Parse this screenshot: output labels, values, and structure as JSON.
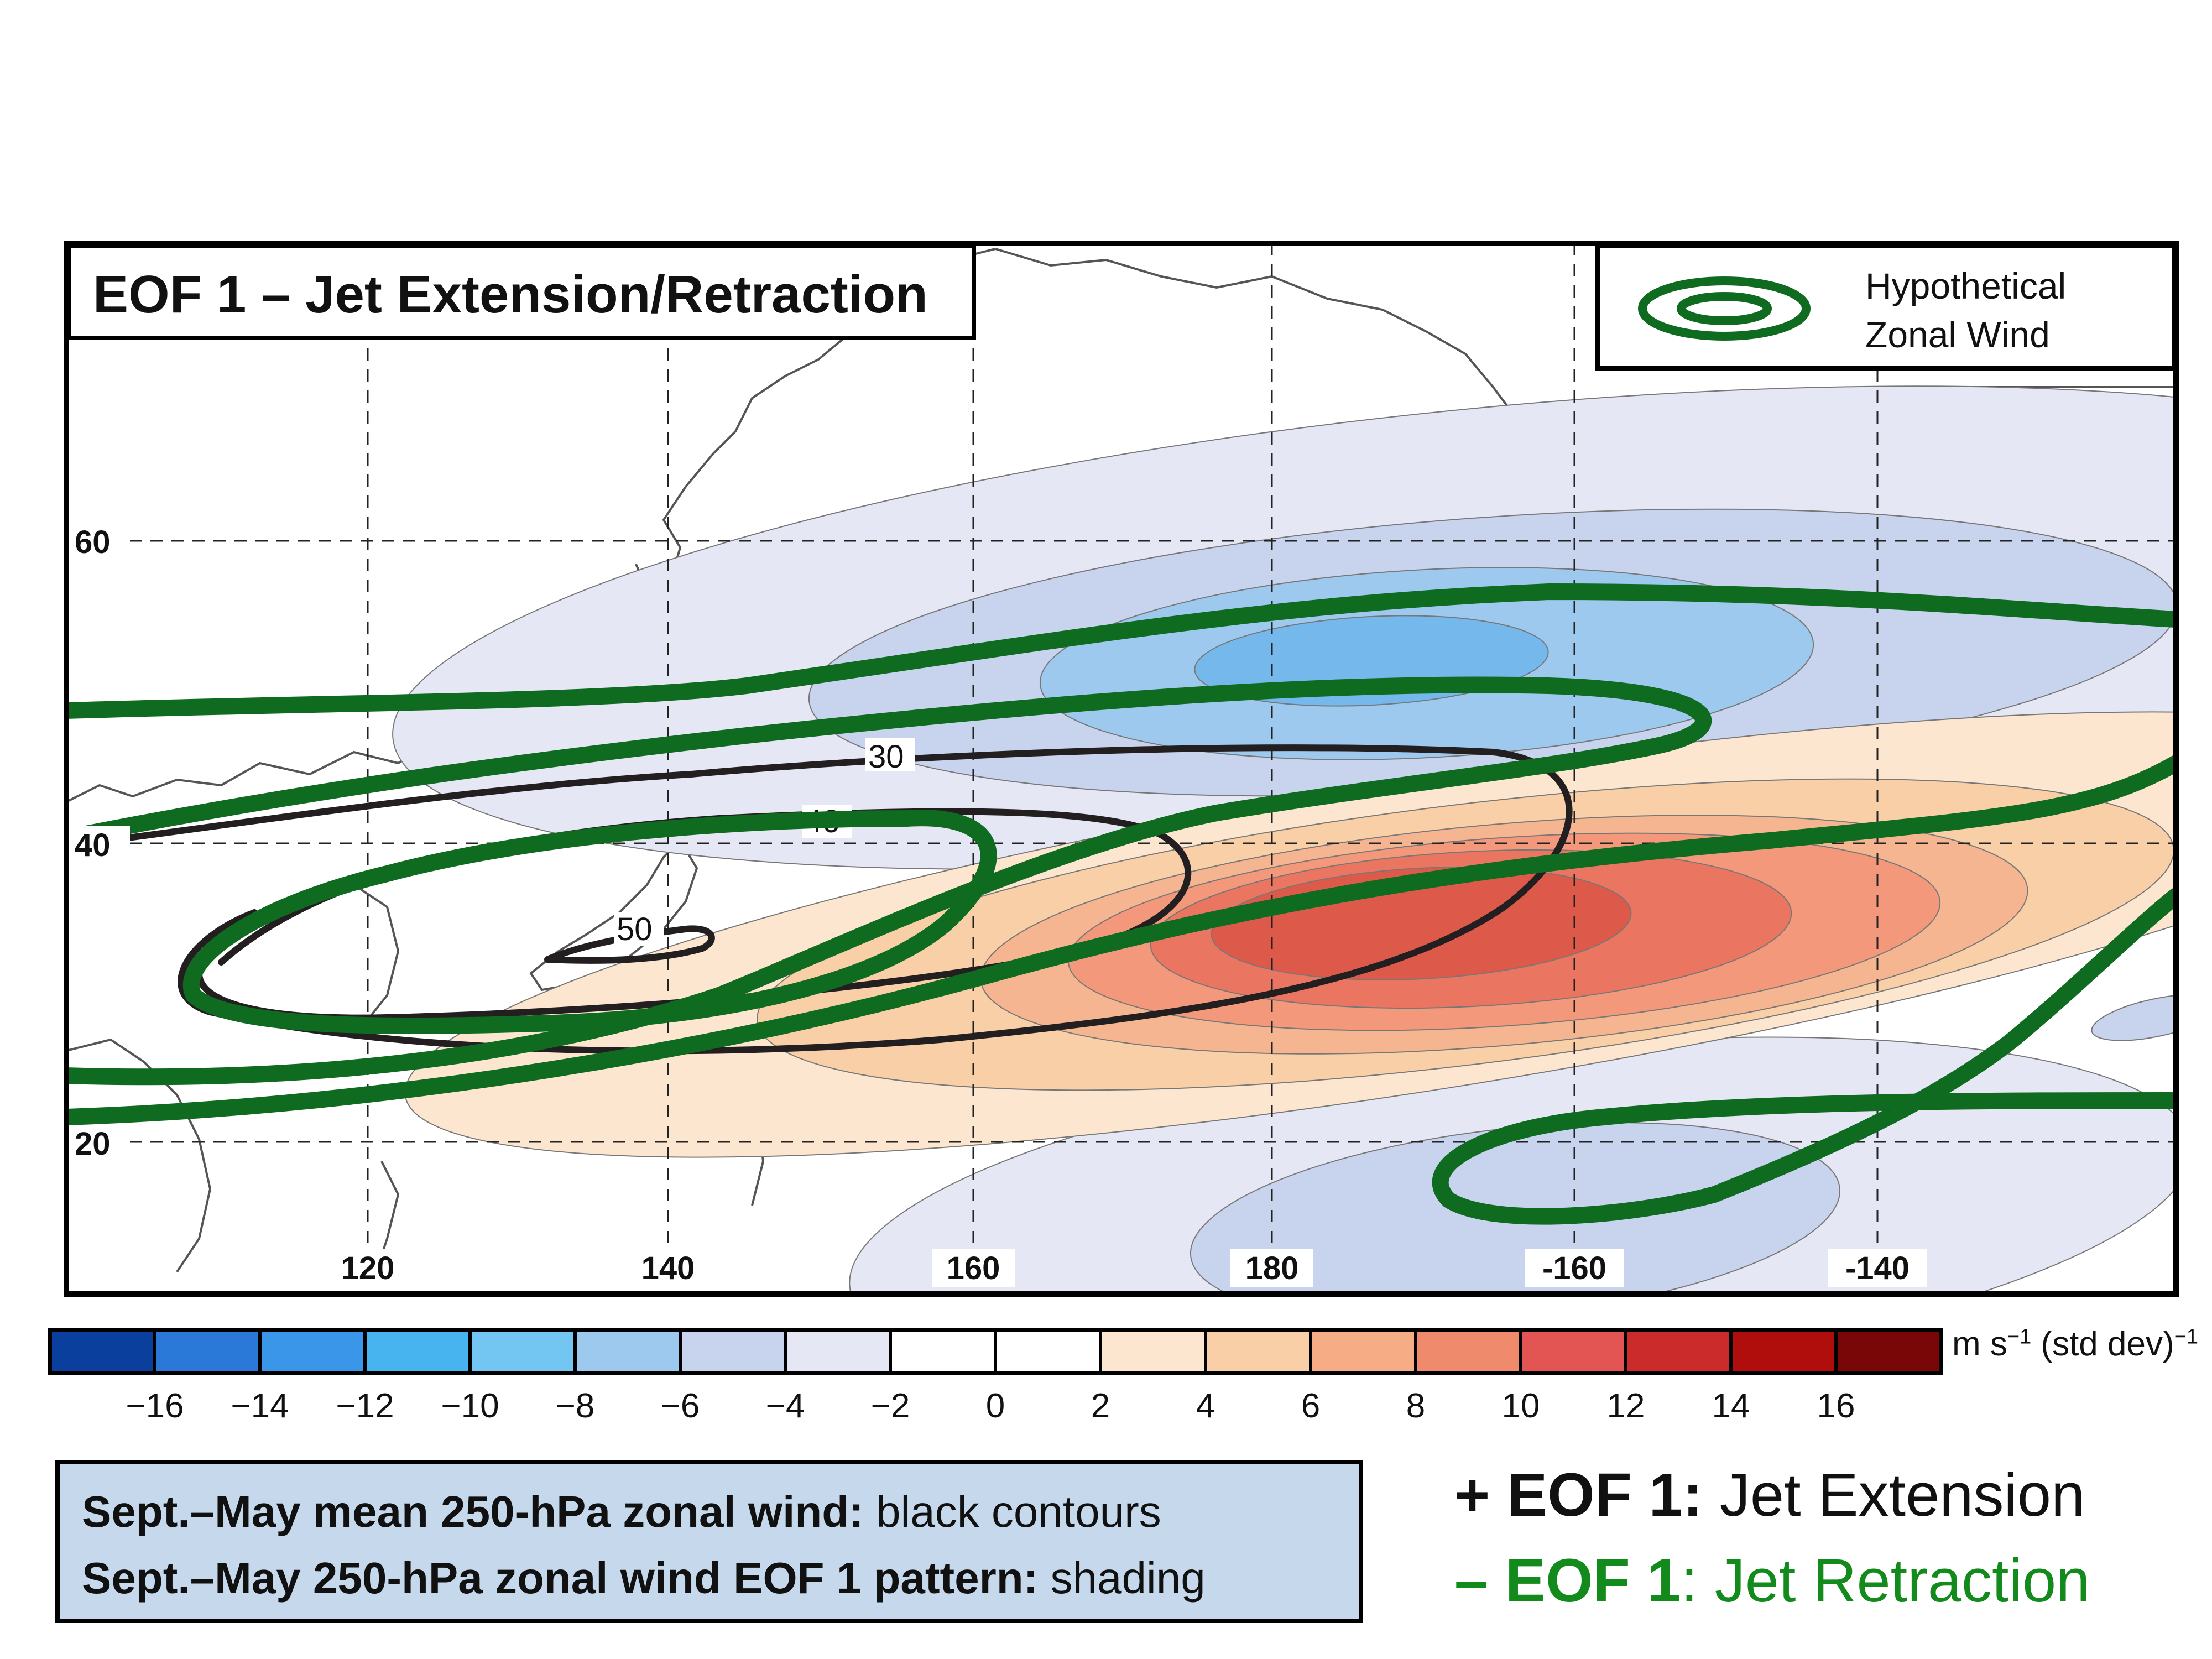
{
  "title": "EOF 1 – Jet Extension/Retraction",
  "legend": {
    "line1": "Hypothetical",
    "line2": "Zonal Wind",
    "icon": "concentric-ellipses-icon",
    "color": "#0e6b1f"
  },
  "map": {
    "lon_labels": [
      "120",
      "140",
      "160",
      "180",
      "-160",
      "-140"
    ],
    "lon_values": [
      120,
      140,
      160,
      180,
      200,
      220
    ],
    "lat_labels": [
      "60",
      "40",
      "20"
    ],
    "lat_values": [
      60,
      40,
      20
    ],
    "mean_wind_contour_labels": [
      "30",
      "40",
      "50"
    ]
  },
  "colorbar": {
    "ticks": [
      "−16",
      "−14",
      "−12",
      "−10",
      "−8",
      "−6",
      "−4",
      "−2",
      "0",
      "2",
      "4",
      "6",
      "8",
      "10",
      "12",
      "14",
      "16"
    ],
    "colors": [
      "#0b3f9e",
      "#2a78d8",
      "#3a96e8",
      "#48b4ef",
      "#74c6f2",
      "#9dc9ef",
      "#c8d3ee",
      "#e6e7f5",
      "#ffffff",
      "#ffffff",
      "#fde6cf",
      "#f9cfa7",
      "#f6ad86",
      "#f08a6d",
      "#e25552",
      "#cc2b2b",
      "#b00d0d",
      "#7a0707"
    ],
    "unit_main": "m s",
    "unit_sup": "−1",
    "unit_rest": " (std dev)",
    "unit_sup2": "−1"
  },
  "caption": {
    "line1_bold": "Sept.–May mean 250-hPa zonal wind:",
    "line1_rest": " black contours",
    "line2_bold": "Sept.–May 250-hPa zonal wind EOF 1 pattern:",
    "line2_rest": " shading"
  },
  "eof_positive": {
    "sign": "+ ",
    "label": "EOF 1:",
    "desc": " Jet Extension",
    "color": "#111111"
  },
  "eof_negative": {
    "sign": "– ",
    "label": "EOF 1",
    "desc": ": Jet Retraction",
    "color": "#138a1c"
  }
}
